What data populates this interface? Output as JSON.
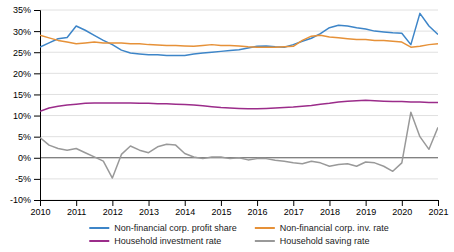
{
  "chart_data": {
    "type": "line",
    "x": [
      2010,
      2010.25,
      2010.5,
      2010.75,
      2011,
      2011.25,
      2011.5,
      2011.75,
      2012,
      2012.25,
      2012.5,
      2012.75,
      2013,
      2013.25,
      2013.5,
      2013.75,
      2014,
      2014.25,
      2014.5,
      2014.75,
      2015,
      2015.25,
      2015.5,
      2015.75,
      2016,
      2016.25,
      2016.5,
      2016.75,
      2017,
      2017.25,
      2017.5,
      2017.75,
      2018,
      2018.25,
      2018.5,
      2018.75,
      2019,
      2019.25,
      2019.5,
      2019.75,
      2020,
      2020.25,
      2020.5,
      2020.75,
      2021
    ],
    "series": [
      {
        "name": "Non-financial corp. profit share",
        "color": "#3D85C8",
        "values": [
          0.262,
          0.272,
          0.282,
          0.285,
          0.312,
          0.302,
          0.29,
          0.278,
          0.268,
          0.255,
          0.248,
          0.246,
          0.244,
          0.244,
          0.242,
          0.242,
          0.242,
          0.246,
          0.248,
          0.25,
          0.252,
          0.254,
          0.256,
          0.26,
          0.264,
          0.265,
          0.263,
          0.262,
          0.268,
          0.276,
          0.283,
          0.294,
          0.308,
          0.314,
          0.312,
          0.308,
          0.305,
          0.3,
          0.298,
          0.296,
          0.295,
          0.268,
          0.342,
          0.312,
          0.292
        ]
      },
      {
        "name": "Non-financial corp. inv. rate",
        "color": "#E69138",
        "values": [
          0.29,
          0.284,
          0.278,
          0.274,
          0.27,
          0.272,
          0.274,
          0.272,
          0.272,
          0.272,
          0.27,
          0.27,
          0.268,
          0.267,
          0.266,
          0.266,
          0.265,
          0.264,
          0.266,
          0.268,
          0.266,
          0.266,
          0.265,
          0.263,
          0.262,
          0.262,
          0.262,
          0.263,
          0.264,
          0.278,
          0.288,
          0.29,
          0.286,
          0.284,
          0.282,
          0.28,
          0.28,
          0.278,
          0.278,
          0.276,
          0.274,
          0.262,
          0.264,
          0.268,
          0.27
        ]
      },
      {
        "name": "Household investment rate",
        "color": "#9B2C8A",
        "values": [
          0.11,
          0.118,
          0.122,
          0.125,
          0.127,
          0.129,
          0.13,
          0.13,
          0.13,
          0.13,
          0.13,
          0.129,
          0.129,
          0.128,
          0.128,
          0.127,
          0.126,
          0.125,
          0.123,
          0.121,
          0.119,
          0.118,
          0.117,
          0.116,
          0.116,
          0.117,
          0.118,
          0.119,
          0.12,
          0.122,
          0.124,
          0.127,
          0.129,
          0.132,
          0.134,
          0.135,
          0.136,
          0.135,
          0.134,
          0.133,
          0.133,
          0.132,
          0.132,
          0.131,
          0.131
        ]
      },
      {
        "name": "Household saving rate",
        "color": "#999999",
        "values": [
          0.048,
          0.03,
          0.022,
          0.018,
          0.022,
          0.012,
          0.002,
          -0.008,
          -0.048,
          0.008,
          0.028,
          0.018,
          0.012,
          0.026,
          0.032,
          0.03,
          0.01,
          0.002,
          -0.002,
          0.002,
          0.002,
          -0.002,
          0.0,
          -0.005,
          -0.002,
          -0.002,
          -0.006,
          -0.008,
          -0.012,
          -0.014,
          -0.008,
          -0.012,
          -0.02,
          -0.016,
          -0.014,
          -0.02,
          -0.01,
          -0.012,
          -0.02,
          -0.032,
          -0.012,
          0.108,
          0.05,
          0.02,
          0.072
        ]
      }
    ],
    "xlim": [
      2010,
      2021
    ],
    "xticks": [
      2010,
      2011,
      2012,
      2013,
      2014,
      2015,
      2016,
      2017,
      2018,
      2019,
      2020,
      2021
    ],
    "ylim": [
      -0.1,
      0.35
    ],
    "yticks": [
      {
        "value": -0.1,
        "label": "-10%"
      },
      {
        "value": -0.05,
        "label": "-5%"
      },
      {
        "value": 0,
        "label": "0%"
      },
      {
        "value": 0.05,
        "label": "5%"
      },
      {
        "value": 0.1,
        "label": "10%"
      },
      {
        "value": 0.15,
        "label": "15%"
      },
      {
        "value": 0.2,
        "label": "20%"
      },
      {
        "value": 0.25,
        "label": "25%"
      },
      {
        "value": 0.3,
        "label": "30%"
      },
      {
        "value": 0.35,
        "label": "35%"
      }
    ],
    "grid": true,
    "legend": "bottom"
  }
}
